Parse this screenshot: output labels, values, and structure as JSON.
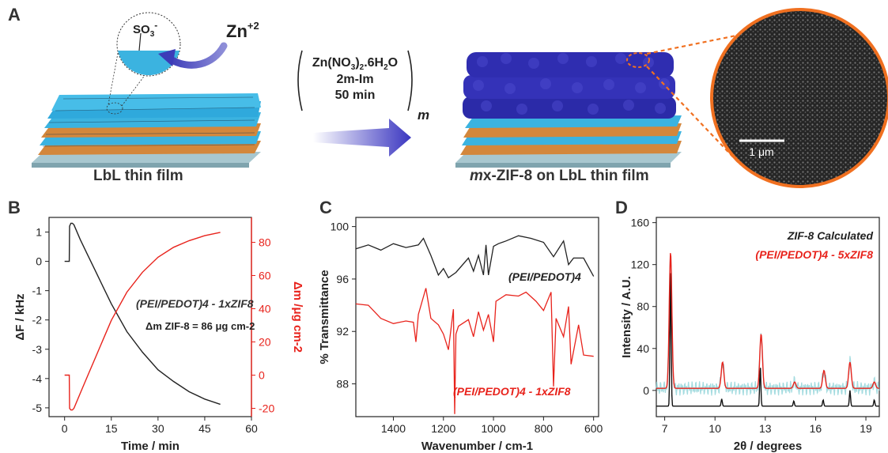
{
  "panels": {
    "a": {
      "letter": "A"
    },
    "b": {
      "letter": "B"
    },
    "c": {
      "letter": "C"
    },
    "d": {
      "letter": "D"
    }
  },
  "schematic": {
    "ion_label": "SO3-",
    "zn_label": "Zn+2",
    "left_caption": "LbL thin film",
    "right_caption_prefix": "m",
    "right_caption_rest": "x-ZIF-8 on LbL thin film",
    "reaction_line1": "Zn(NO3)2.6H2O",
    "reaction_line2": "2m-Im",
    "reaction_line3": "50 min",
    "repeat_subscript": "m",
    "scale_bar": "1 μm"
  },
  "chart_data": [
    {
      "type": "line",
      "panel": "B",
      "xlabel": "Time / min",
      "ylabel_left": "ΔF / kHz",
      "ylabel_right": "Δm /μg cm-2",
      "xlim": [
        -5,
        60
      ],
      "ylim_left": [
        -5.3,
        1.5
      ],
      "ylim_right": [
        -25,
        95
      ],
      "x_ticks": [
        0,
        15,
        30,
        45,
        60
      ],
      "y_ticks_left": [
        1,
        0,
        -1,
        -2,
        -3,
        -4,
        -5
      ],
      "y_ticks_right": [
        80,
        60,
        40,
        20,
        0,
        -20
      ],
      "annotation_series": "(PEI/PEDOT)4 - 1xZIF8",
      "annotation_mass": "Δm ZIF-8 = 86 μg cm-2",
      "series": [
        {
          "name": "ΔF",
          "axis": "left",
          "color": "#222222",
          "x": [
            0,
            1.5,
            1.6,
            2.0,
            2.5,
            3.0,
            5,
            7.5,
            10,
            12.5,
            15,
            20,
            25,
            30,
            35,
            40,
            45,
            50
          ],
          "y": [
            0,
            0,
            1.2,
            1.3,
            1.3,
            1.25,
            0.75,
            0.2,
            -0.35,
            -0.9,
            -1.45,
            -2.4,
            -3.1,
            -3.7,
            -4.1,
            -4.45,
            -4.7,
            -4.88
          ]
        },
        {
          "name": "Δm",
          "axis": "right",
          "color": "#e8231c",
          "x": [
            0,
            1.5,
            1.6,
            2.0,
            2.5,
            3.0,
            5,
            7.5,
            10,
            12.5,
            15,
            20,
            25,
            30,
            35,
            40,
            45,
            50
          ],
          "y": [
            0,
            0,
            -20,
            -21,
            -21,
            -20,
            -11,
            0,
            11,
            22,
            33,
            50,
            62,
            71,
            77,
            81,
            84,
            86
          ]
        }
      ]
    },
    {
      "type": "line",
      "panel": "C",
      "xlabel": "Wavenumber / cm-1",
      "ylabel": "% Transmittance",
      "xlim": [
        1550,
        580
      ],
      "ylim": [
        85.5,
        100.7
      ],
      "x_ticks": [
        1400,
        1200,
        1000,
        800,
        600
      ],
      "y_ticks": [
        100,
        96,
        92,
        88
      ],
      "series": [
        {
          "name": "(PEI/PEDOT)4",
          "color": "#222222",
          "x": [
            1550,
            1500,
            1450,
            1400,
            1350,
            1300,
            1280,
            1250,
            1220,
            1200,
            1180,
            1150,
            1100,
            1080,
            1060,
            1040,
            1030,
            1020,
            1000,
            980,
            950,
            900,
            850,
            800,
            760,
            720,
            700,
            680,
            640,
            600
          ],
          "y": [
            98.3,
            98.6,
            98.2,
            98.7,
            98.4,
            98.6,
            99.1,
            97.8,
            96.3,
            96.8,
            96.1,
            96.5,
            97.6,
            96.6,
            97.8,
            96.3,
            98.6,
            96.3,
            98.5,
            98.7,
            98.9,
            99.3,
            99.1,
            98.8,
            97.7,
            98.9,
            97.1,
            97.6,
            97.6,
            96.2
          ]
        },
        {
          "name": "(PEI/PEDOT)4 - 1xZIF8",
          "color": "#e8231c",
          "x": [
            1550,
            1500,
            1450,
            1400,
            1350,
            1320,
            1310,
            1300,
            1270,
            1250,
            1220,
            1200,
            1180,
            1160,
            1155,
            1150,
            1140,
            1100,
            1080,
            1060,
            1040,
            1020,
            1000,
            990,
            950,
            900,
            870,
            830,
            800,
            770,
            760,
            750,
            720,
            700,
            690,
            660,
            640,
            600
          ],
          "y": [
            94.1,
            94.0,
            93.0,
            92.6,
            92.8,
            92.7,
            91.2,
            93.3,
            95.3,
            93.0,
            92.5,
            91.8,
            90.6,
            93.7,
            85.7,
            91.8,
            92.4,
            92.9,
            91.6,
            93.5,
            92.1,
            93.3,
            91.2,
            94.3,
            94.8,
            94.7,
            95.0,
            94.3,
            93.6,
            95.0,
            87.8,
            93.0,
            91.6,
            93.9,
            89.5,
            92.5,
            90.2,
            90.1
          ]
        }
      ],
      "annotation_black": "(PEI/PEDOT)4",
      "annotation_red": "(PEI/PEDOT)4 - 1xZIF8"
    },
    {
      "type": "line",
      "panel": "D",
      "xlabel": "2θ / degrees",
      "ylabel": "Intensity / A.U.",
      "xlim": [
        6.5,
        19.8
      ],
      "ylim": [
        -25,
        165
      ],
      "x_ticks": [
        7,
        10,
        13,
        16,
        19
      ],
      "y_ticks": [
        160,
        120,
        80,
        40,
        0
      ],
      "legend": "top-right",
      "series": [
        {
          "name": "ZIF-8 Calculated",
          "color": "#111111",
          "peaks": [
            {
              "x": 7.35,
              "y": 132
            },
            {
              "x": 10.4,
              "y": 7
            },
            {
              "x": 12.7,
              "y": 38
            },
            {
              "x": 14.7,
              "y": 5
            },
            {
              "x": 16.45,
              "y": 6
            },
            {
              "x": 18.05,
              "y": 15
            },
            {
              "x": 19.5,
              "y": 6
            }
          ],
          "baseline": -15
        },
        {
          "name": "(PEI/PEDOT)4 - 5xZIF8",
          "color": "#e8231c",
          "peaks": [
            {
              "x": 7.35,
              "y": 130
            },
            {
              "x": 10.45,
              "y": 25
            },
            {
              "x": 12.75,
              "y": 52
            },
            {
              "x": 14.75,
              "y": 6
            },
            {
              "x": 16.5,
              "y": 17
            },
            {
              "x": 18.05,
              "y": 25
            },
            {
              "x": 19.5,
              "y": 6
            }
          ],
          "baseline": 2
        }
      ]
    }
  ]
}
